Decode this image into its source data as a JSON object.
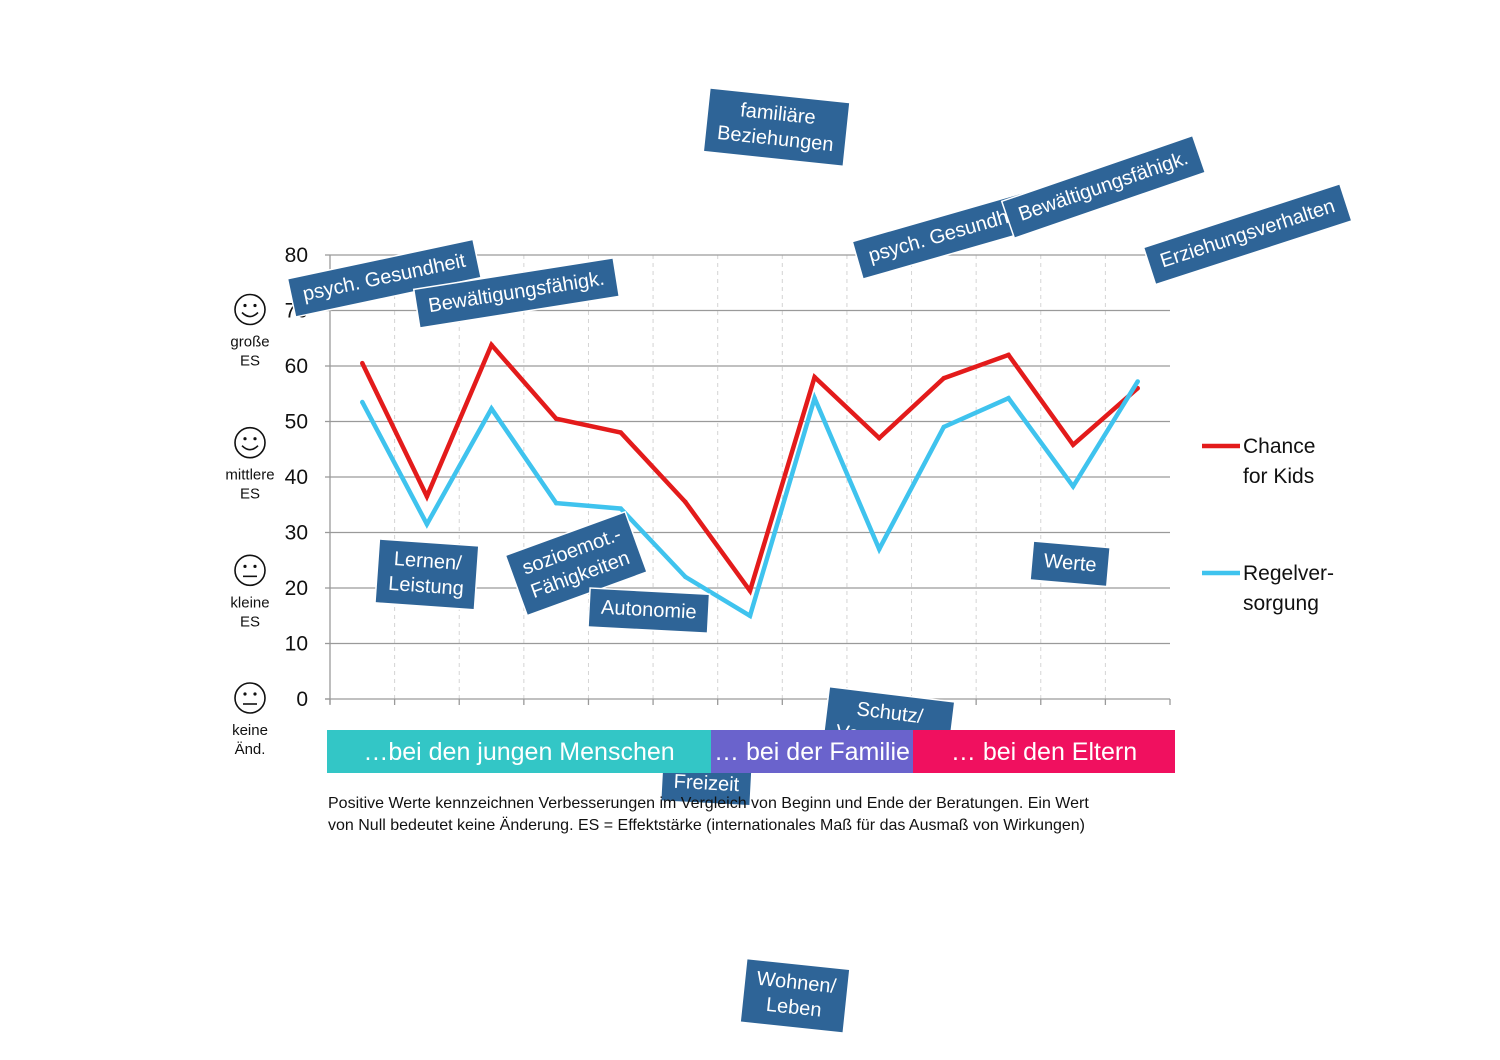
{
  "chart_data": {
    "type": "line",
    "ylim": [
      0,
      80
    ],
    "yticks": [
      "0",
      "10",
      "20",
      "30",
      "40",
      "50",
      "60",
      "70",
      "80"
    ],
    "x": [
      1,
      2,
      3,
      4,
      5,
      6,
      7,
      8,
      9,
      10,
      11,
      12,
      13
    ],
    "series": [
      {
        "name": "Chance for Kids",
        "color": "#e31b1b",
        "values": [
          60.5,
          36.5,
          63.8,
          50.5,
          48,
          35.5,
          19.5,
          58,
          47,
          57.8,
          62,
          45.8,
          56
        ]
      },
      {
        "name": "Regelversorgung",
        "color": "#3fc3ee",
        "values": [
          53.5,
          31.5,
          52.3,
          35.3,
          34.3,
          22,
          15,
          54.2,
          27,
          49,
          54.2,
          38.3,
          57.2
        ]
      }
    ],
    "legend": [
      {
        "lines": [
          "Chance",
          "for Kids"
        ],
        "color": "#e31b1b"
      },
      {
        "lines": [
          "Regelver-",
          "sorgung"
        ],
        "color": "#3fc3ee"
      }
    ],
    "legend_placement": "right",
    "grid": true,
    "es_markers": [
      {
        "icon": "smiley-big-icon",
        "value": 70,
        "lines": [
          "große",
          "ES"
        ]
      },
      {
        "icon": "smiley-medium-icon",
        "value": 46,
        "lines": [
          "mittlere",
          "ES"
        ]
      },
      {
        "icon": "smiley-neutral-small-icon",
        "value": 23,
        "lines": [
          "kleine",
          "ES"
        ]
      },
      {
        "icon": "smiley-neutral-icon",
        "value": 0,
        "lines": [
          "keine",
          "Änd."
        ]
      }
    ],
    "annotations": [
      {
        "lines": [
          "psych. Gesundheit"
        ],
        "point": 1,
        "pos": "top-left"
      },
      {
        "lines": [
          "Lernen/",
          "Leistung"
        ],
        "point": 2,
        "pos": "bottom"
      },
      {
        "lines": [
          "Bewältigungsfähigk."
        ],
        "point": 3,
        "pos": "top"
      },
      {
        "lines": [
          "sozioemot.-",
          "Fähigkeiten"
        ],
        "point": 4,
        "pos": "bottom"
      },
      {
        "lines": [
          "Autonomie"
        ],
        "point": 5,
        "pos": "bottom"
      },
      {
        "lines": [
          "Freizeit"
        ],
        "point": 6,
        "pos": "bottom"
      },
      {
        "lines": [
          "Wohnen/",
          "Leben"
        ],
        "point": 7,
        "pos": "bottom-right"
      },
      {
        "lines": [
          "familiäre",
          "Beziehungen"
        ],
        "point": 8,
        "pos": "top"
      },
      {
        "lines": [
          "Schutz/",
          "Versorgung"
        ],
        "point": 9,
        "pos": "bottom"
      },
      {
        "lines": [
          "psych. Gesundheit"
        ],
        "point": 10,
        "pos": "top"
      },
      {
        "lines": [
          "Bewältigungsfähigk."
        ],
        "point": 11,
        "pos": "top"
      },
      {
        "lines": [
          "Werte"
        ],
        "point": 12,
        "pos": "bottom"
      },
      {
        "lines": [
          "Erziehungsverhalten"
        ],
        "point": 13,
        "pos": "top-right"
      }
    ],
    "groups": [
      {
        "label": "…bei den jungen Menschen",
        "color": "#33c6c6"
      },
      {
        "label": "… bei der Familie",
        "color": "#6a63cc"
      },
      {
        "label": "… bei den Eltern",
        "color": "#f0105f"
      }
    ],
    "footnote": [
      "Positive Werte kennzeichnen Verbesserungen im Vergleich von Beginn und Ende der Beratungen. Ein Wert",
      "von Null bedeutet keine Änderung. ES = Effektstärke (internationales Maß für das Ausmaß von Wirkungen)"
    ]
  }
}
